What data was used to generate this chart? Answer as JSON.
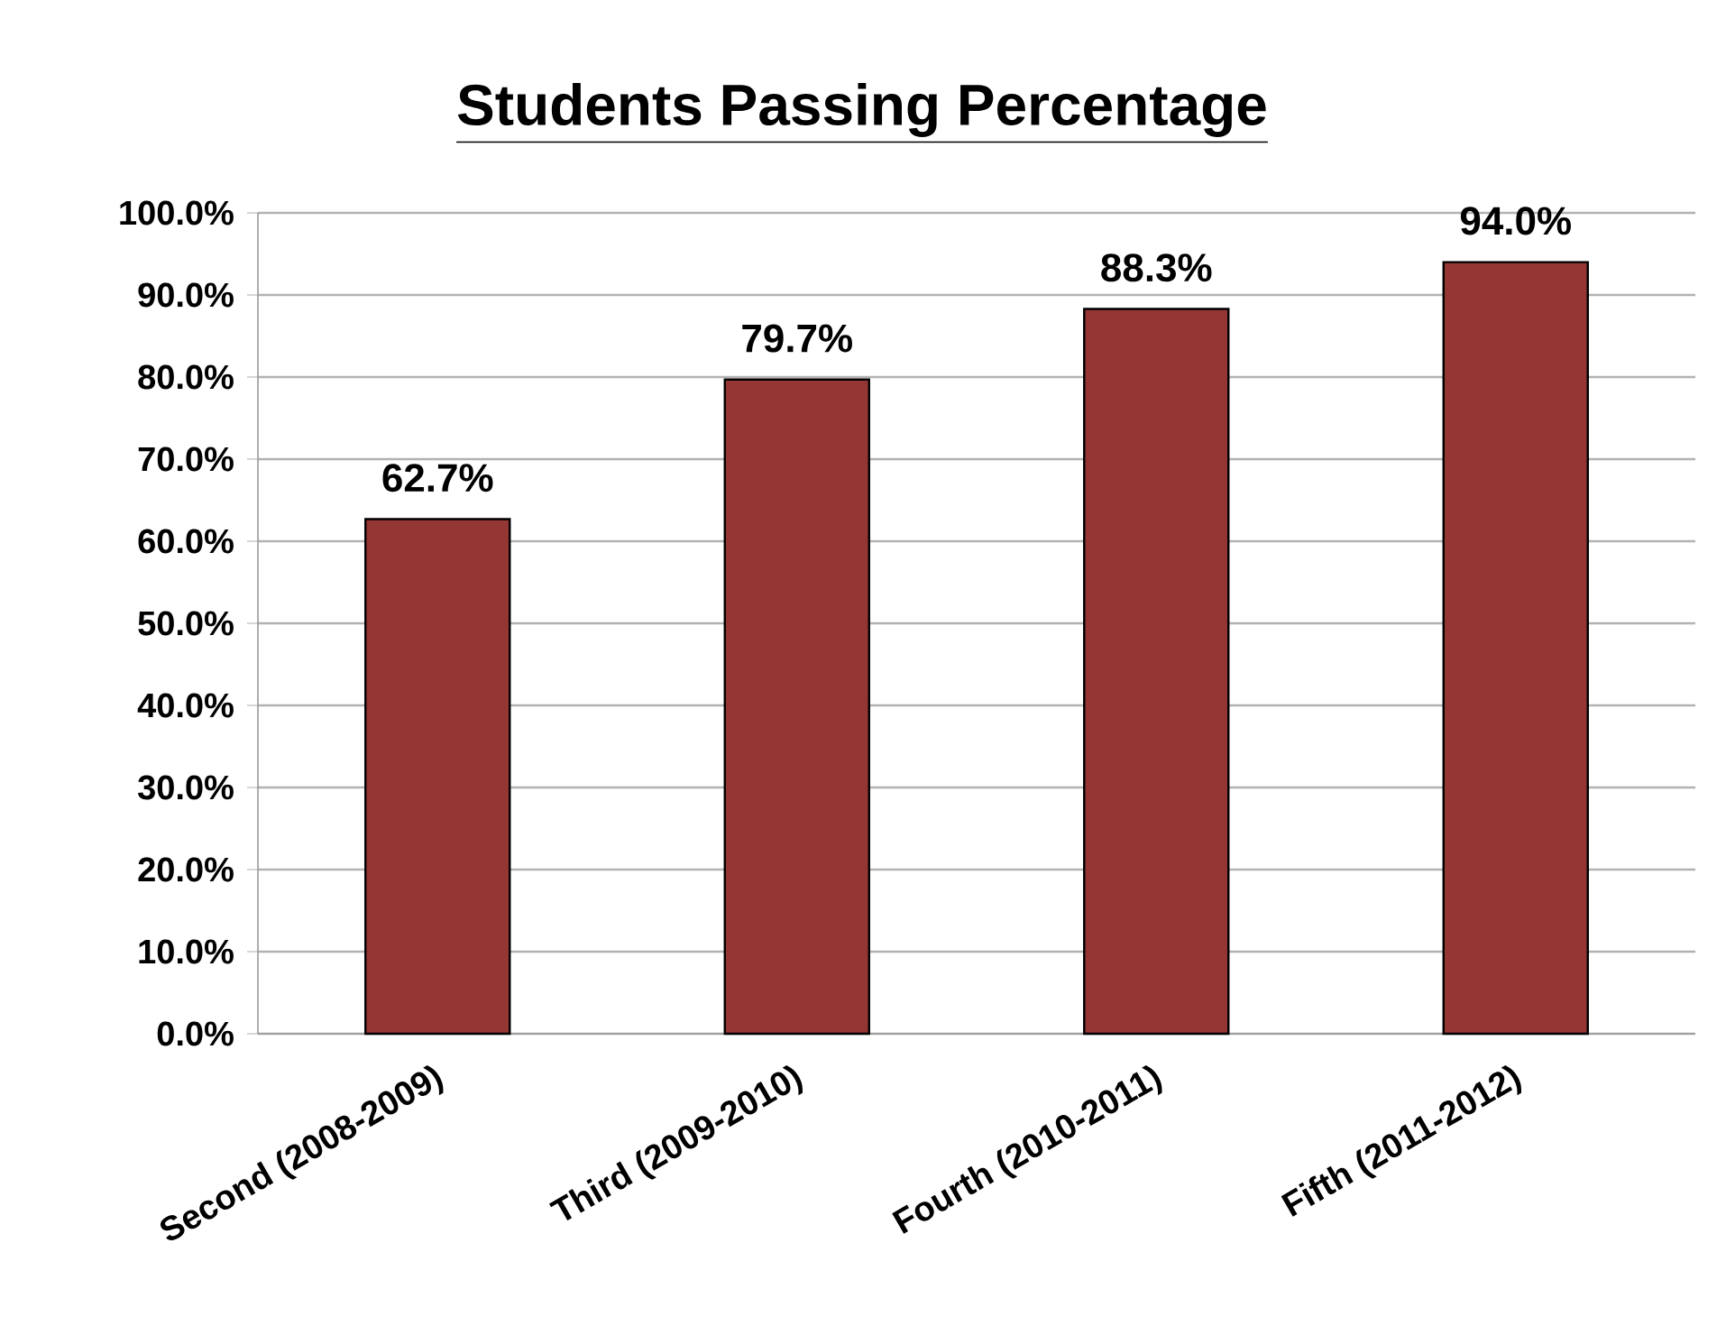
{
  "chart_data": {
    "type": "bar",
    "title": "Students Passing Percentage",
    "categories": [
      "Second (2008-2009)",
      "Third (2009-2010)",
      "Fourth (2010-2011)",
      "Fifth (2011-2012)"
    ],
    "values": [
      62.7,
      79.7,
      88.3,
      94.0
    ],
    "value_labels": [
      "62.7%",
      "79.7%",
      "88.3%",
      "94.0%"
    ],
    "color": "#943634",
    "ylim": [
      0,
      100
    ],
    "yticks": [
      {
        "value": 0,
        "label": "0.0%"
      },
      {
        "value": 10,
        "label": "10.0%"
      },
      {
        "value": 20,
        "label": "20.0%"
      },
      {
        "value": 30,
        "label": "30.0%"
      },
      {
        "value": 40,
        "label": "40.0%"
      },
      {
        "value": 50,
        "label": "50.0%"
      },
      {
        "value": 60,
        "label": "60.0%"
      },
      {
        "value": 70,
        "label": "70.0%"
      },
      {
        "value": 80,
        "label": "80.0%"
      },
      {
        "value": 90,
        "label": "90.0%"
      },
      {
        "value": 100,
        "label": "100.0%"
      }
    ],
    "grid": "y"
  }
}
